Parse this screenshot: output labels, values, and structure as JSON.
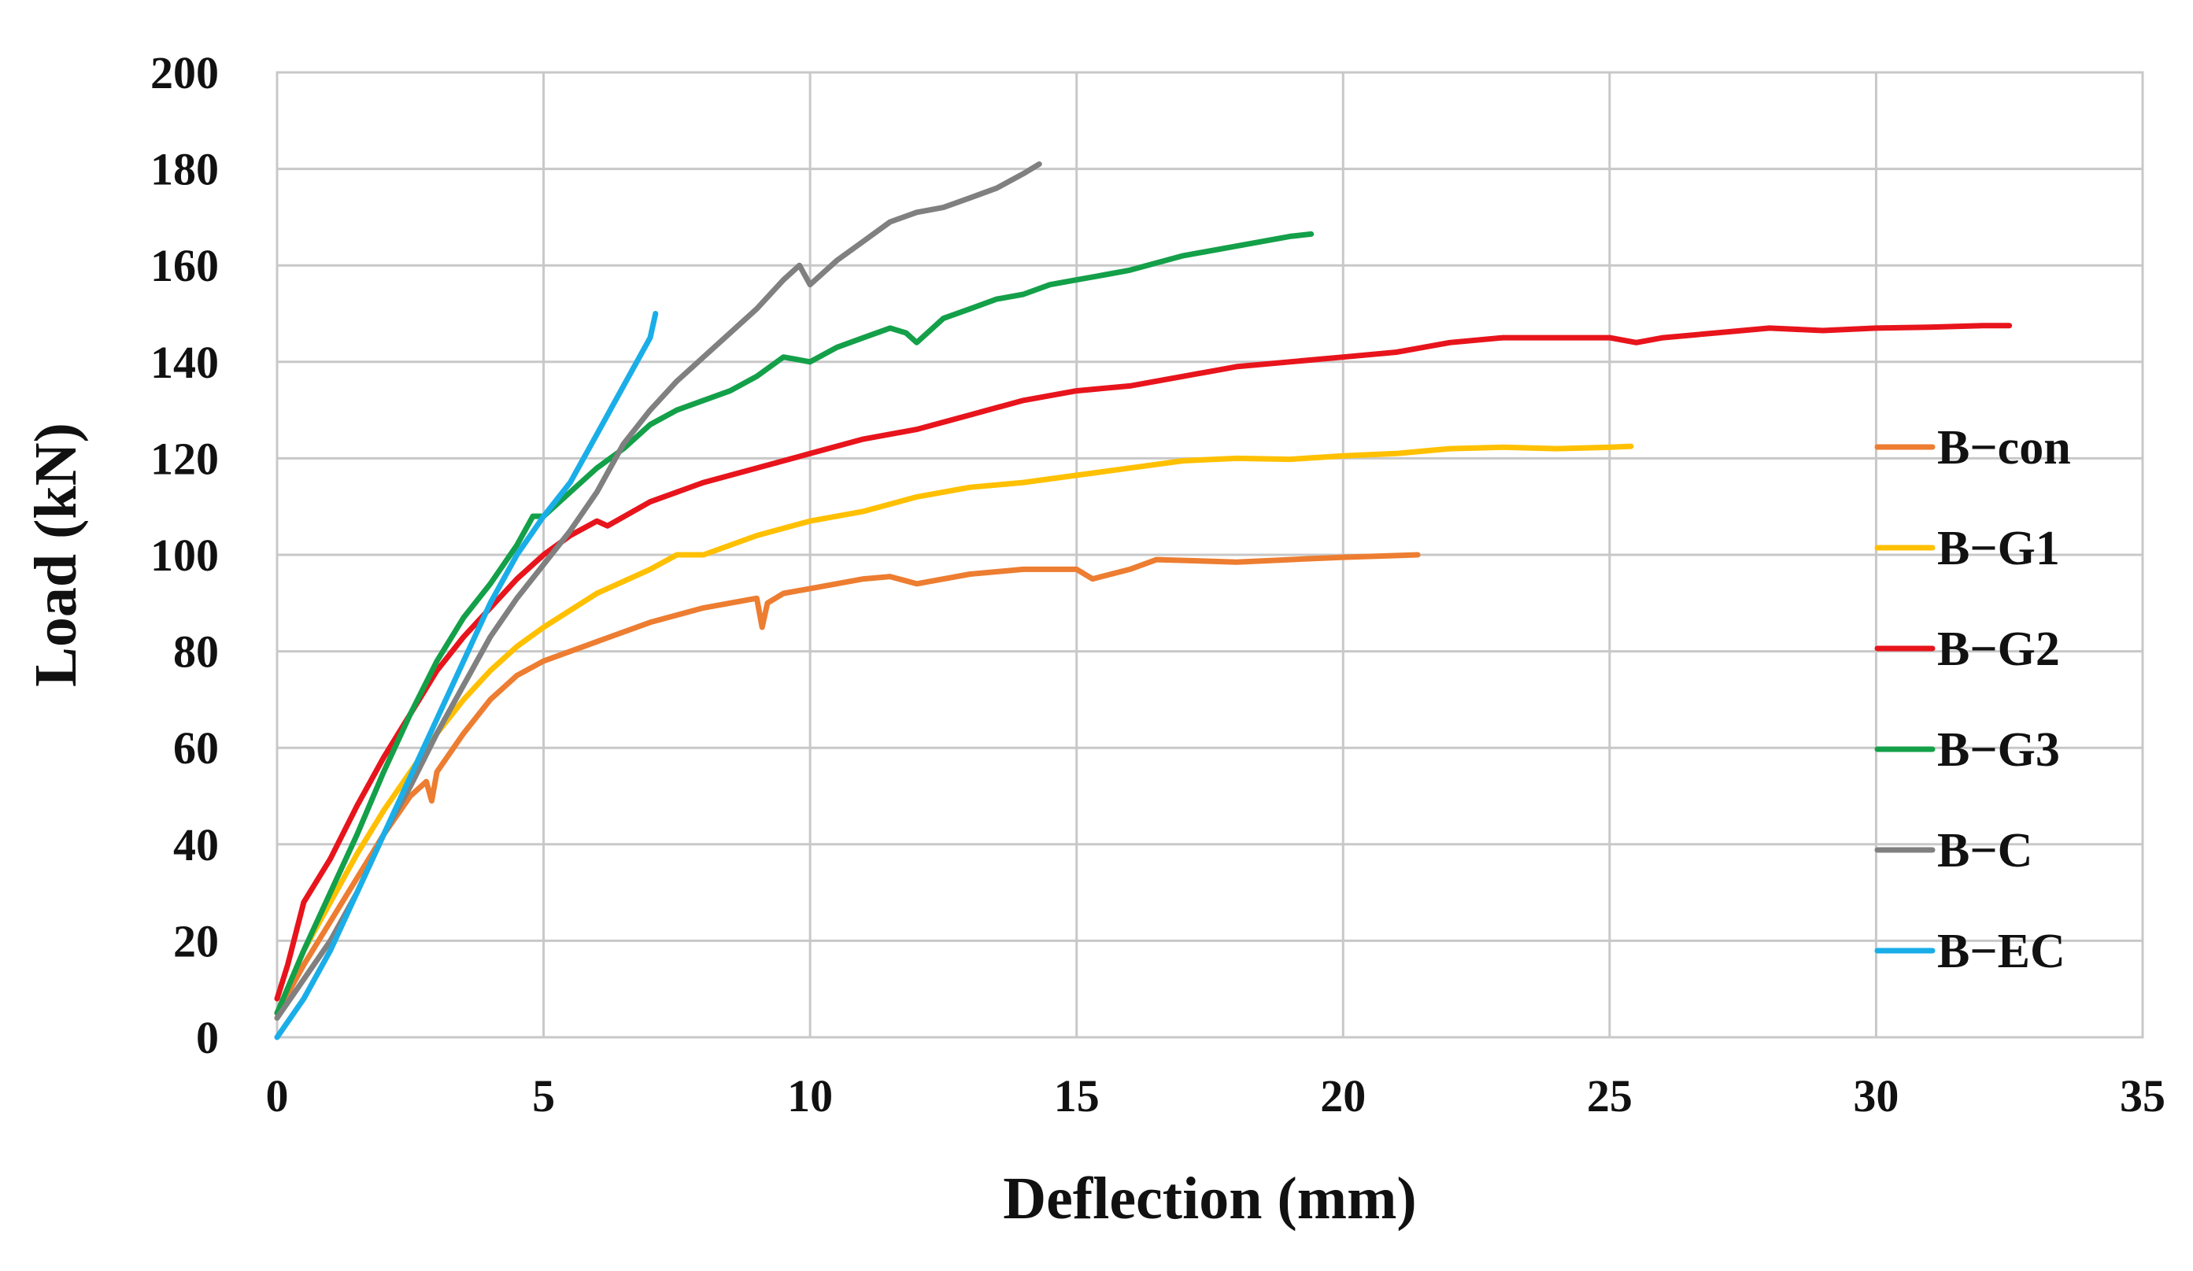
{
  "chart_data": {
    "type": "line",
    "title": "",
    "xlabel": "Deflection (mm)",
    "ylabel": "Load (kN)",
    "xlim": [
      0,
      35
    ],
    "ylim": [
      0,
      200
    ],
    "xticks": [
      0,
      5,
      10,
      15,
      20,
      25,
      30,
      35
    ],
    "yticks": [
      0,
      20,
      40,
      60,
      80,
      100,
      120,
      140,
      160,
      180,
      200
    ],
    "grid": true,
    "legend_position": "right",
    "series": [
      {
        "name": "B−con",
        "color": "#ed7d31",
        "x": [
          0,
          0.5,
          1.0,
          1.5,
          2.0,
          2.5,
          2.8,
          2.9,
          3.0,
          3.5,
          4.0,
          4.5,
          5.0,
          6.0,
          7.0,
          8.0,
          9.0,
          9.1,
          9.2,
          9.5,
          10.0,
          11.0,
          11.5,
          12.0,
          13.0,
          14.0,
          15.0,
          15.3,
          16.0,
          16.5,
          18.0,
          19.0,
          20.0,
          21.4
        ],
        "y": [
          5,
          15,
          24,
          33,
          42,
          50,
          53,
          49,
          55,
          63,
          70,
          75,
          78,
          82,
          86,
          89,
          91,
          85,
          90,
          92,
          93,
          95,
          95.5,
          94,
          96,
          97,
          97,
          95,
          97,
          99,
          98.5,
          99,
          99.5,
          100
        ]
      },
      {
        "name": "B−G1",
        "color": "#ffc000",
        "x": [
          0,
          0.5,
          1.0,
          1.5,
          2.0,
          2.5,
          3.0,
          3.5,
          4.0,
          4.5,
          5.0,
          6.0,
          7.0,
          7.5,
          8.0,
          9.0,
          10.0,
          11.0,
          12.0,
          13.0,
          14.0,
          15.0,
          16.0,
          17.0,
          18.0,
          19.0,
          20.0,
          21.0,
          22.0,
          23.0,
          24.0,
          25.0,
          25.4
        ],
        "y": [
          5,
          18,
          28,
          38,
          47,
          55,
          63,
          70,
          76,
          81,
          85,
          92,
          97,
          100,
          100,
          104,
          107,
          109,
          112,
          114,
          115,
          116.5,
          118,
          119.5,
          120,
          119.8,
          120.5,
          121,
          122,
          122.3,
          122,
          122.3,
          122.5
        ]
      },
      {
        "name": "B−G2",
        "color": "#e8141c",
        "x": [
          0,
          0.2,
          0.5,
          1.0,
          1.5,
          2.0,
          2.5,
          3.0,
          3.5,
          4.0,
          4.5,
          5.0,
          5.5,
          6.0,
          6.2,
          7.0,
          8.0,
          9.0,
          10.0,
          11.0,
          12.0,
          13.0,
          14.0,
          15.0,
          16.0,
          17.0,
          18.0,
          19.0,
          20.0,
          21.0,
          22.0,
          23.0,
          24.0,
          25.0,
          25.5,
          26.0,
          27.0,
          28.0,
          29.0,
          30.0,
          31.0,
          32.0,
          32.5
        ],
        "y": [
          8,
          15,
          28,
          37,
          48,
          58,
          67,
          76,
          83,
          89,
          95,
          100,
          104,
          107,
          106,
          111,
          115,
          118,
          121,
          124,
          126,
          129,
          132,
          134,
          135,
          137,
          139,
          140,
          141,
          142,
          144,
          145,
          145,
          145,
          144,
          145,
          146,
          147,
          146.5,
          147,
          147.2,
          147.5,
          147.5
        ]
      },
      {
        "name": "B−G3",
        "color": "#13a049",
        "x": [
          0,
          0.5,
          1.0,
          1.5,
          2.0,
          2.5,
          3.0,
          3.5,
          4.0,
          4.5,
          4.8,
          5.0,
          5.5,
          6.0,
          6.5,
          7.0,
          7.5,
          8.0,
          8.5,
          9.0,
          9.5,
          10.0,
          10.5,
          11.0,
          11.5,
          11.8,
          12.0,
          12.5,
          13.0,
          13.5,
          14.0,
          14.5,
          15.0,
          15.5,
          16.0,
          17.0,
          18.0,
          19.0,
          19.4
        ],
        "y": [
          5,
          18,
          30,
          42,
          55,
          67,
          78,
          87,
          94,
          102,
          108,
          108,
          113,
          118,
          122,
          127,
          130,
          132,
          134,
          137,
          141,
          140,
          143,
          145,
          147,
          146,
          144,
          149,
          151,
          153,
          154,
          156,
          157,
          158,
          159,
          162,
          164,
          166,
          166.5
        ]
      },
      {
        "name": "B−C",
        "color": "#808080",
        "x": [
          0,
          0.5,
          1.0,
          1.5,
          2.0,
          2.5,
          3.0,
          3.5,
          4.0,
          4.5,
          5.0,
          5.5,
          6.0,
          6.5,
          7.0,
          7.5,
          8.0,
          8.5,
          9.0,
          9.5,
          9.8,
          10.0,
          10.5,
          11.0,
          11.5,
          12.0,
          12.5,
          13.0,
          13.5,
          14.0,
          14.3
        ],
        "y": [
          4,
          12,
          20,
          30,
          42,
          52,
          63,
          73,
          83,
          91,
          98,
          105,
          113,
          123,
          130,
          136,
          141,
          146,
          151,
          157,
          160,
          156,
          161,
          165,
          169,
          171,
          172,
          174,
          176,
          179,
          181
        ]
      },
      {
        "name": "B−EC",
        "color": "#1aaee8",
        "x": [
          0,
          0.5,
          1.0,
          1.5,
          2.0,
          2.5,
          3.0,
          3.5,
          4.0,
          4.5,
          5.0,
          5.5,
          6.0,
          6.5,
          7.0,
          7.1
        ],
        "y": [
          0,
          8,
          18,
          30,
          42,
          54,
          66,
          78,
          90,
          100,
          108,
          115,
          125,
          135,
          145,
          150
        ]
      }
    ]
  }
}
